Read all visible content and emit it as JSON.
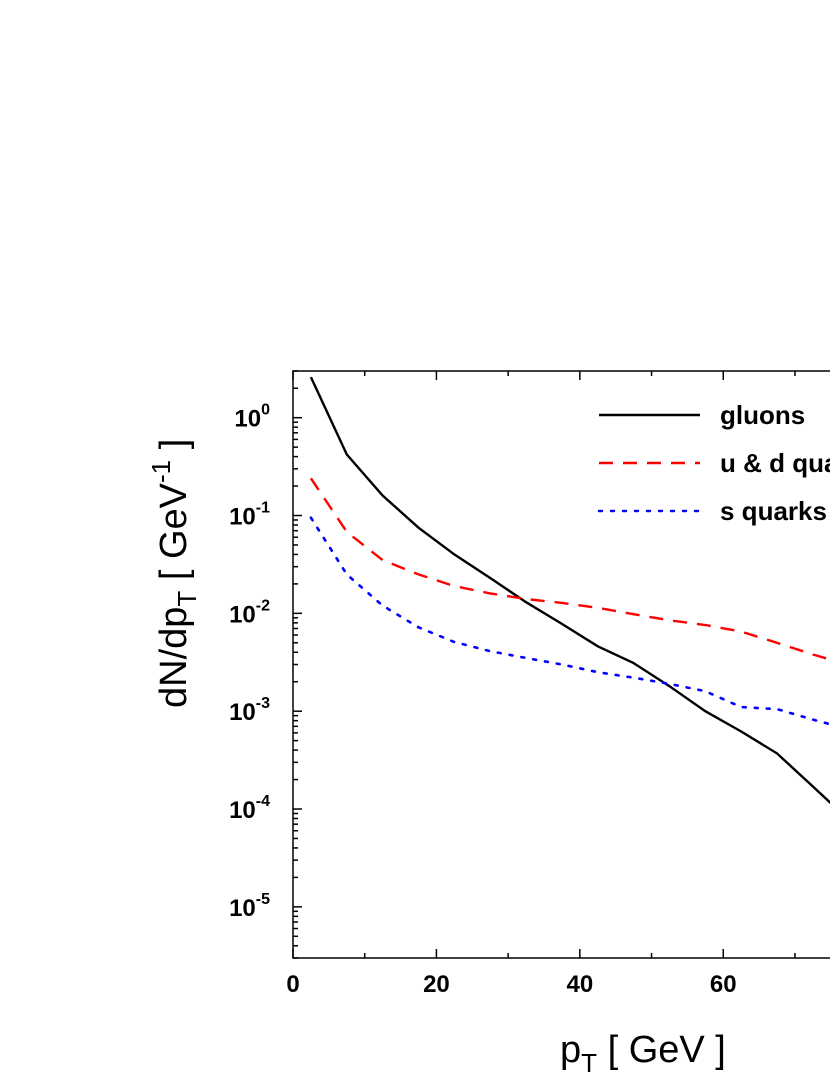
{
  "chart_data": {
    "type": "line",
    "xlabel_main": "p",
    "xlabel_sub": "T",
    "xlabel_rest": " [ GeV ]",
    "ylabel_main": "dN/dp",
    "ylabel_sub": "T",
    "ylabel_mid": "  [ GeV",
    "ylabel_sup": "-1",
    "ylabel_end": " ]",
    "xlim": [
      0,
      76
    ],
    "ylim": [
      3e-06,
      3
    ],
    "yscale": "log",
    "x_ticks": [
      "0",
      "20",
      "40",
      "60"
    ],
    "y_ticks": [
      {
        "base": "10",
        "exp": "0"
      },
      {
        "base": "10",
        "exp": "-1"
      },
      {
        "base": "10",
        "exp": "-2"
      },
      {
        "base": "10",
        "exp": "-3"
      },
      {
        "base": "10",
        "exp": "-4"
      },
      {
        "base": "10",
        "exp": "-5"
      }
    ],
    "legend_position": "top-right",
    "series": [
      {
        "name": "gluons",
        "color": "#000000",
        "dash": "solid",
        "x": [
          2.5,
          7.5,
          12.5,
          17.5,
          22.5,
          27.5,
          32.5,
          37.5,
          42.5,
          47.5,
          52.5,
          57.5,
          62.5,
          67.5,
          72.5,
          76
        ],
        "y": [
          2.6,
          0.42,
          0.16,
          0.075,
          0.04,
          0.023,
          0.013,
          0.0078,
          0.0046,
          0.0031,
          0.0018,
          0.001,
          0.00062,
          0.00037,
          0.00017,
          9.8e-05
        ]
      },
      {
        "name": "u & d quarks",
        "color": "#ff0000",
        "dash": "dashed",
        "x": [
          2.5,
          7.5,
          12.5,
          17.5,
          22.5,
          27.5,
          32.5,
          37.5,
          42.5,
          47.5,
          52.5,
          57.5,
          62.5,
          67.5,
          72.5,
          76
        ],
        "y": [
          0.24,
          0.068,
          0.035,
          0.025,
          0.019,
          0.016,
          0.014,
          0.0128,
          0.0114,
          0.0098,
          0.0085,
          0.0076,
          0.0065,
          0.005,
          0.0038,
          0.0032
        ]
      },
      {
        "name": "s quarks",
        "color": "#0000ff",
        "dash": "dotted",
        "x": [
          2.5,
          7.5,
          12.5,
          17.5,
          22.5,
          27.5,
          32.5,
          37.5,
          42.5,
          47.5,
          52.5,
          57.5,
          62.5,
          67.5,
          72.5,
          76
        ],
        "y": [
          0.095,
          0.025,
          0.012,
          0.0072,
          0.0051,
          0.0041,
          0.0035,
          0.003,
          0.0025,
          0.0022,
          0.0019,
          0.0016,
          0.0011,
          0.00105,
          0.00082,
          0.0007
        ]
      }
    ]
  }
}
